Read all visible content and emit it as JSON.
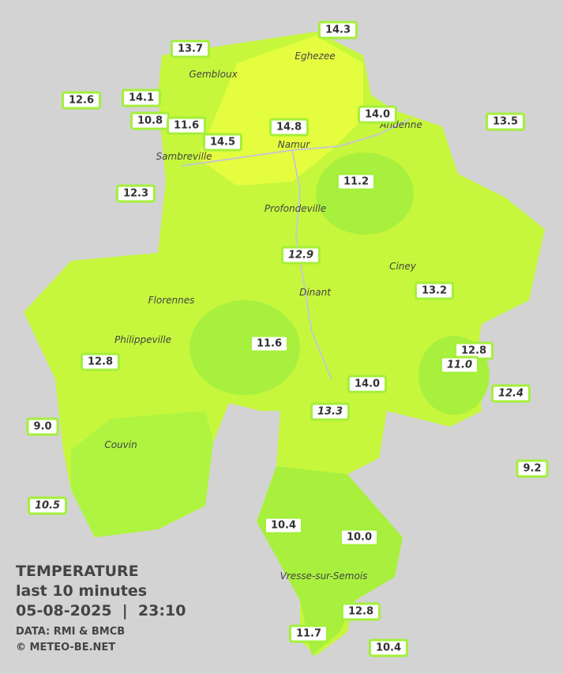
{
  "legend": {
    "title": "TEMPERATURE",
    "period": "last 10 minutes",
    "datetime": "05-08-2025  |  23:10",
    "source": "DATA: RMI & BMCB",
    "credit": "© METEO-BE.NET"
  },
  "towns": [
    "Eghezee",
    "Gembloux",
    "Andenne",
    "Namur",
    "Sambreville",
    "Profondeville",
    "Ciney",
    "Dinant",
    "Florennes",
    "Philippeville",
    "Couvin",
    "Vresse-sur-Semois"
  ],
  "stations": [
    {
      "value": "14.3"
    },
    {
      "value": "13.7"
    },
    {
      "value": "12.6"
    },
    {
      "value": "14.1"
    },
    {
      "value": "10.8"
    },
    {
      "value": "11.6"
    },
    {
      "value": "14.8"
    },
    {
      "value": "14.0"
    },
    {
      "value": "13.5"
    },
    {
      "value": "14.5"
    },
    {
      "value": "12.3"
    },
    {
      "value": "11.2"
    },
    {
      "value": "12.9",
      "italic": true
    },
    {
      "value": "13.2"
    },
    {
      "value": "11.6"
    },
    {
      "value": "12.8"
    },
    {
      "value": "11.0",
      "italic": true
    },
    {
      "value": "12.8"
    },
    {
      "value": "14.0"
    },
    {
      "value": "12.4",
      "italic": true
    },
    {
      "value": "13.3",
      "italic": true
    },
    {
      "value": "9.0"
    },
    {
      "value": "9.2"
    },
    {
      "value": "10.5",
      "italic": true
    },
    {
      "value": "10.4"
    },
    {
      "value": "10.0"
    },
    {
      "value": "12.8"
    },
    {
      "value": "11.7"
    },
    {
      "value": "10.4"
    }
  ]
}
